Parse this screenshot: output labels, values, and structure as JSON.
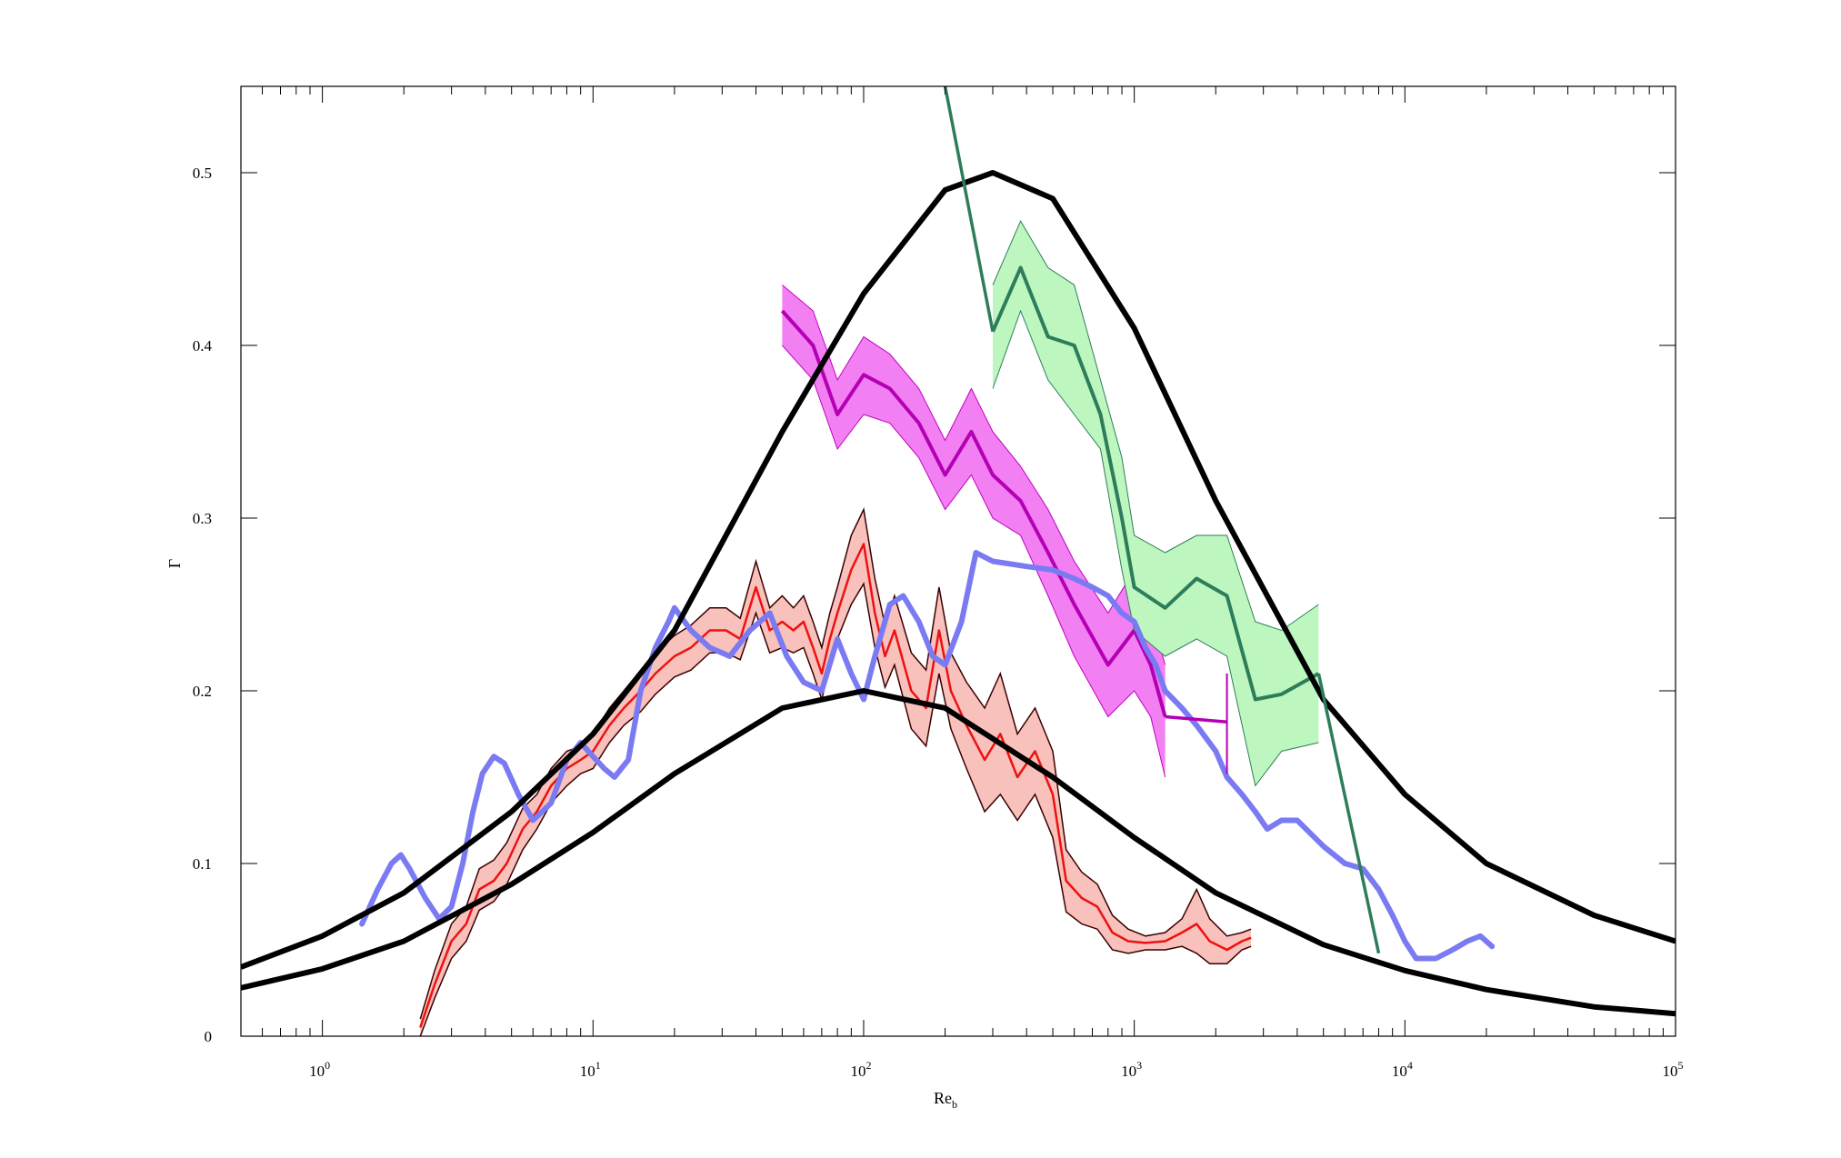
{
  "chart_data": {
    "type": "line",
    "title": "",
    "xlabel": "Re",
    "xlabel_sub": "b",
    "ylabel": "Γ",
    "xscale": "log",
    "xlim": [
      0.5,
      100000
    ],
    "ylim": [
      0,
      0.55
    ],
    "grid": false,
    "xticks": [
      {
        "value": 1,
        "base": "10",
        "exp": "0"
      },
      {
        "value": 10,
        "base": "10",
        "exp": "1"
      },
      {
        "value": 100,
        "base": "10",
        "exp": "2"
      },
      {
        "value": 1000,
        "base": "10",
        "exp": "3"
      },
      {
        "value": 10000,
        "base": "10",
        "exp": "4"
      },
      {
        "value": 100000,
        "base": "10",
        "exp": "5"
      }
    ],
    "yticks": [
      {
        "value": 0,
        "label": "0"
      },
      {
        "value": 0.1,
        "label": "0.1"
      },
      {
        "value": 0.2,
        "label": "0.2"
      },
      {
        "value": 0.3,
        "label": "0.3"
      },
      {
        "value": 0.4,
        "label": "0.4"
      },
      {
        "value": 0.5,
        "label": "0.5"
      }
    ],
    "colors": {
      "black_curves": "#000000",
      "red_line": "#ee1111",
      "red_band": "#f8c1bc",
      "magenta_line": "#b400b4",
      "magenta_band": "#f279f2",
      "green_line": "#2e7d5a",
      "green_band": "#bdf7bf",
      "blue_line": "#7a7af2"
    },
    "series": [
      {
        "style": "black-thick",
        "x": [
          0.5,
          1,
          2,
          5,
          10,
          20,
          50,
          100,
          200,
          300,
          500,
          1000,
          2000,
          5000,
          10000,
          20000,
          50000,
          100000
        ],
        "y": [
          0.04,
          0.058,
          0.083,
          0.13,
          0.175,
          0.235,
          0.35,
          0.43,
          0.49,
          0.5,
          0.485,
          0.41,
          0.31,
          0.195,
          0.14,
          0.1,
          0.07,
          0.055
        ]
      },
      {
        "style": "black-thick",
        "x": [
          0.5,
          1,
          2,
          5,
          10,
          20,
          50,
          100,
          200,
          500,
          1000,
          2000,
          5000,
          10000,
          20000,
          50000,
          100000
        ],
        "y": [
          0.028,
          0.039,
          0.055,
          0.088,
          0.118,
          0.152,
          0.19,
          0.2,
          0.19,
          0.15,
          0.115,
          0.083,
          0.053,
          0.038,
          0.027,
          0.017,
          0.013
        ]
      },
      {
        "style": "blue",
        "x": [
          1.4,
          1.6,
          1.8,
          1.95,
          2.1,
          2.4,
          2.7,
          3.0,
          3.3,
          3.6,
          3.9,
          4.3,
          4.7,
          5.3,
          6,
          7,
          8,
          9,
          10,
          11,
          12,
          13.5,
          15,
          17,
          19,
          20,
          23,
          27,
          32,
          38,
          45,
          52,
          60,
          70,
          80,
          90,
          100,
          110,
          125,
          140,
          160,
          180,
          200,
          230,
          260,
          300,
          400,
          500,
          600,
          700,
          800,
          900,
          1000,
          1100,
          1200,
          1300,
          1500,
          1700,
          2000,
          2200,
          2500,
          2800,
          3100,
          3500,
          4000,
          5000,
          6000,
          7000,
          8000,
          9000,
          10000,
          11000,
          13000,
          15000,
          17000,
          19000,
          21000
        ],
        "y": [
          0.065,
          0.085,
          0.1,
          0.105,
          0.097,
          0.08,
          0.068,
          0.075,
          0.1,
          0.13,
          0.152,
          0.162,
          0.158,
          0.14,
          0.125,
          0.135,
          0.16,
          0.17,
          0.162,
          0.155,
          0.15,
          0.16,
          0.2,
          0.225,
          0.24,
          0.248,
          0.235,
          0.225,
          0.22,
          0.235,
          0.245,
          0.22,
          0.205,
          0.2,
          0.23,
          0.21,
          0.195,
          0.22,
          0.25,
          0.255,
          0.24,
          0.22,
          0.215,
          0.24,
          0.28,
          0.275,
          0.272,
          0.27,
          0.265,
          0.26,
          0.255,
          0.245,
          0.24,
          0.225,
          0.215,
          0.2,
          0.19,
          0.18,
          0.165,
          0.15,
          0.14,
          0.13,
          0.12,
          0.125,
          0.125,
          0.11,
          0.1,
          0.097,
          0.085,
          0.07,
          0.055,
          0.045,
          0.045,
          0.05,
          0.055,
          0.058,
          0.052
        ]
      },
      {
        "style": "red-band",
        "x": [
          2.3,
          2.6,
          3,
          3.4,
          3.8,
          4.3,
          4.8,
          5.5,
          6.2,
          7,
          8,
          9,
          10,
          11.5,
          13,
          15,
          17,
          20,
          23,
          27,
          31,
          35,
          40,
          45,
          50,
          55,
          60,
          65,
          70,
          75,
          80,
          90,
          100,
          110,
          120,
          130,
          150,
          170,
          190,
          210,
          240,
          280,
          320,
          370,
          430,
          500,
          560,
          640,
          730,
          830,
          950,
          1100,
          1300,
          1500,
          1700,
          1900,
          2200,
          2500,
          2700
        ],
        "y": [
          0.005,
          0.03,
          0.055,
          0.065,
          0.085,
          0.09,
          0.1,
          0.12,
          0.13,
          0.145,
          0.155,
          0.16,
          0.165,
          0.18,
          0.19,
          0.2,
          0.21,
          0.22,
          0.225,
          0.235,
          0.235,
          0.23,
          0.26,
          0.235,
          0.24,
          0.235,
          0.24,
          0.225,
          0.21,
          0.23,
          0.245,
          0.27,
          0.285,
          0.245,
          0.22,
          0.235,
          0.2,
          0.19,
          0.235,
          0.2,
          0.18,
          0.16,
          0.175,
          0.15,
          0.165,
          0.14,
          0.09,
          0.08,
          0.075,
          0.06,
          0.055,
          0.054,
          0.055,
          0.06,
          0.065,
          0.055,
          0.05,
          0.055,
          0.057
        ],
        "lower": [
          0.0,
          0.022,
          0.045,
          0.055,
          0.073,
          0.078,
          0.088,
          0.108,
          0.12,
          0.135,
          0.145,
          0.152,
          0.155,
          0.17,
          0.18,
          0.188,
          0.198,
          0.208,
          0.212,
          0.222,
          0.222,
          0.218,
          0.245,
          0.222,
          0.225,
          0.222,
          0.225,
          0.21,
          0.195,
          0.215,
          0.23,
          0.25,
          0.262,
          0.225,
          0.202,
          0.215,
          0.178,
          0.168,
          0.21,
          0.178,
          0.155,
          0.13,
          0.14,
          0.125,
          0.14,
          0.115,
          0.072,
          0.065,
          0.062,
          0.05,
          0.048,
          0.05,
          0.05,
          0.052,
          0.048,
          0.042,
          0.042,
          0.05,
          0.052
        ],
        "upper": [
          0.01,
          0.038,
          0.065,
          0.075,
          0.097,
          0.102,
          0.112,
          0.132,
          0.14,
          0.155,
          0.165,
          0.168,
          0.175,
          0.19,
          0.2,
          0.212,
          0.222,
          0.232,
          0.238,
          0.248,
          0.248,
          0.242,
          0.275,
          0.248,
          0.255,
          0.248,
          0.255,
          0.24,
          0.225,
          0.245,
          0.26,
          0.29,
          0.305,
          0.265,
          0.238,
          0.255,
          0.222,
          0.212,
          0.26,
          0.222,
          0.205,
          0.19,
          0.21,
          0.175,
          0.19,
          0.165,
          0.108,
          0.095,
          0.088,
          0.07,
          0.062,
          0.058,
          0.06,
          0.068,
          0.085,
          0.068,
          0.058,
          0.06,
          0.062
        ]
      },
      {
        "style": "magenta-band",
        "x": [
          50,
          65,
          80,
          100,
          125,
          160,
          200,
          250,
          300,
          380,
          480,
          600,
          800,
          1000,
          1150,
          1300
        ],
        "y": [
          0.42,
          0.4,
          0.36,
          0.383,
          0.375,
          0.355,
          0.325,
          0.35,
          0.325,
          0.31,
          0.28,
          0.25,
          0.215,
          0.235,
          0.215,
          0.185
        ],
        "lower": [
          0.4,
          0.38,
          0.34,
          0.36,
          0.355,
          0.335,
          0.305,
          0.325,
          0.3,
          0.29,
          0.255,
          0.22,
          0.185,
          0.2,
          0.185,
          0.15
        ],
        "upper": [
          0.435,
          0.42,
          0.38,
          0.405,
          0.395,
          0.375,
          0.345,
          0.375,
          0.35,
          0.33,
          0.305,
          0.275,
          0.245,
          0.27,
          0.245,
          0.215
        ]
      },
      {
        "style": "magenta-line",
        "x": [
          1300,
          2200
        ],
        "y": [
          0.185,
          0.182
        ]
      },
      {
        "style": "magenta-errorbar",
        "x": [
          2200
        ],
        "y": [
          0.182
        ],
        "lower": [
          0.152
        ],
        "upper": [
          0.21
        ]
      },
      {
        "style": "green-band",
        "x": [
          300,
          380,
          480,
          600,
          750,
          900,
          1000,
          1300,
          1700,
          2200,
          2800,
          3500,
          4800
        ],
        "y": [
          0.408,
          0.445,
          0.405,
          0.4,
          0.36,
          0.3,
          0.26,
          0.248,
          0.265,
          0.255,
          0.195,
          0.198,
          0.21
        ],
        "lower": [
          0.375,
          0.42,
          0.38,
          0.36,
          0.34,
          0.27,
          0.235,
          0.22,
          0.23,
          0.22,
          0.145,
          0.165,
          0.17
        ],
        "upper": [
          0.435,
          0.472,
          0.445,
          0.435,
          0.38,
          0.335,
          0.29,
          0.28,
          0.29,
          0.29,
          0.24,
          0.235,
          0.25
        ]
      },
      {
        "style": "green-line",
        "x": [
          200,
          300
        ],
        "y": [
          0.55,
          0.408
        ]
      },
      {
        "style": "green-line",
        "x": [
          4800,
          8000
        ],
        "y": [
          0.21,
          0.048
        ]
      }
    ]
  }
}
